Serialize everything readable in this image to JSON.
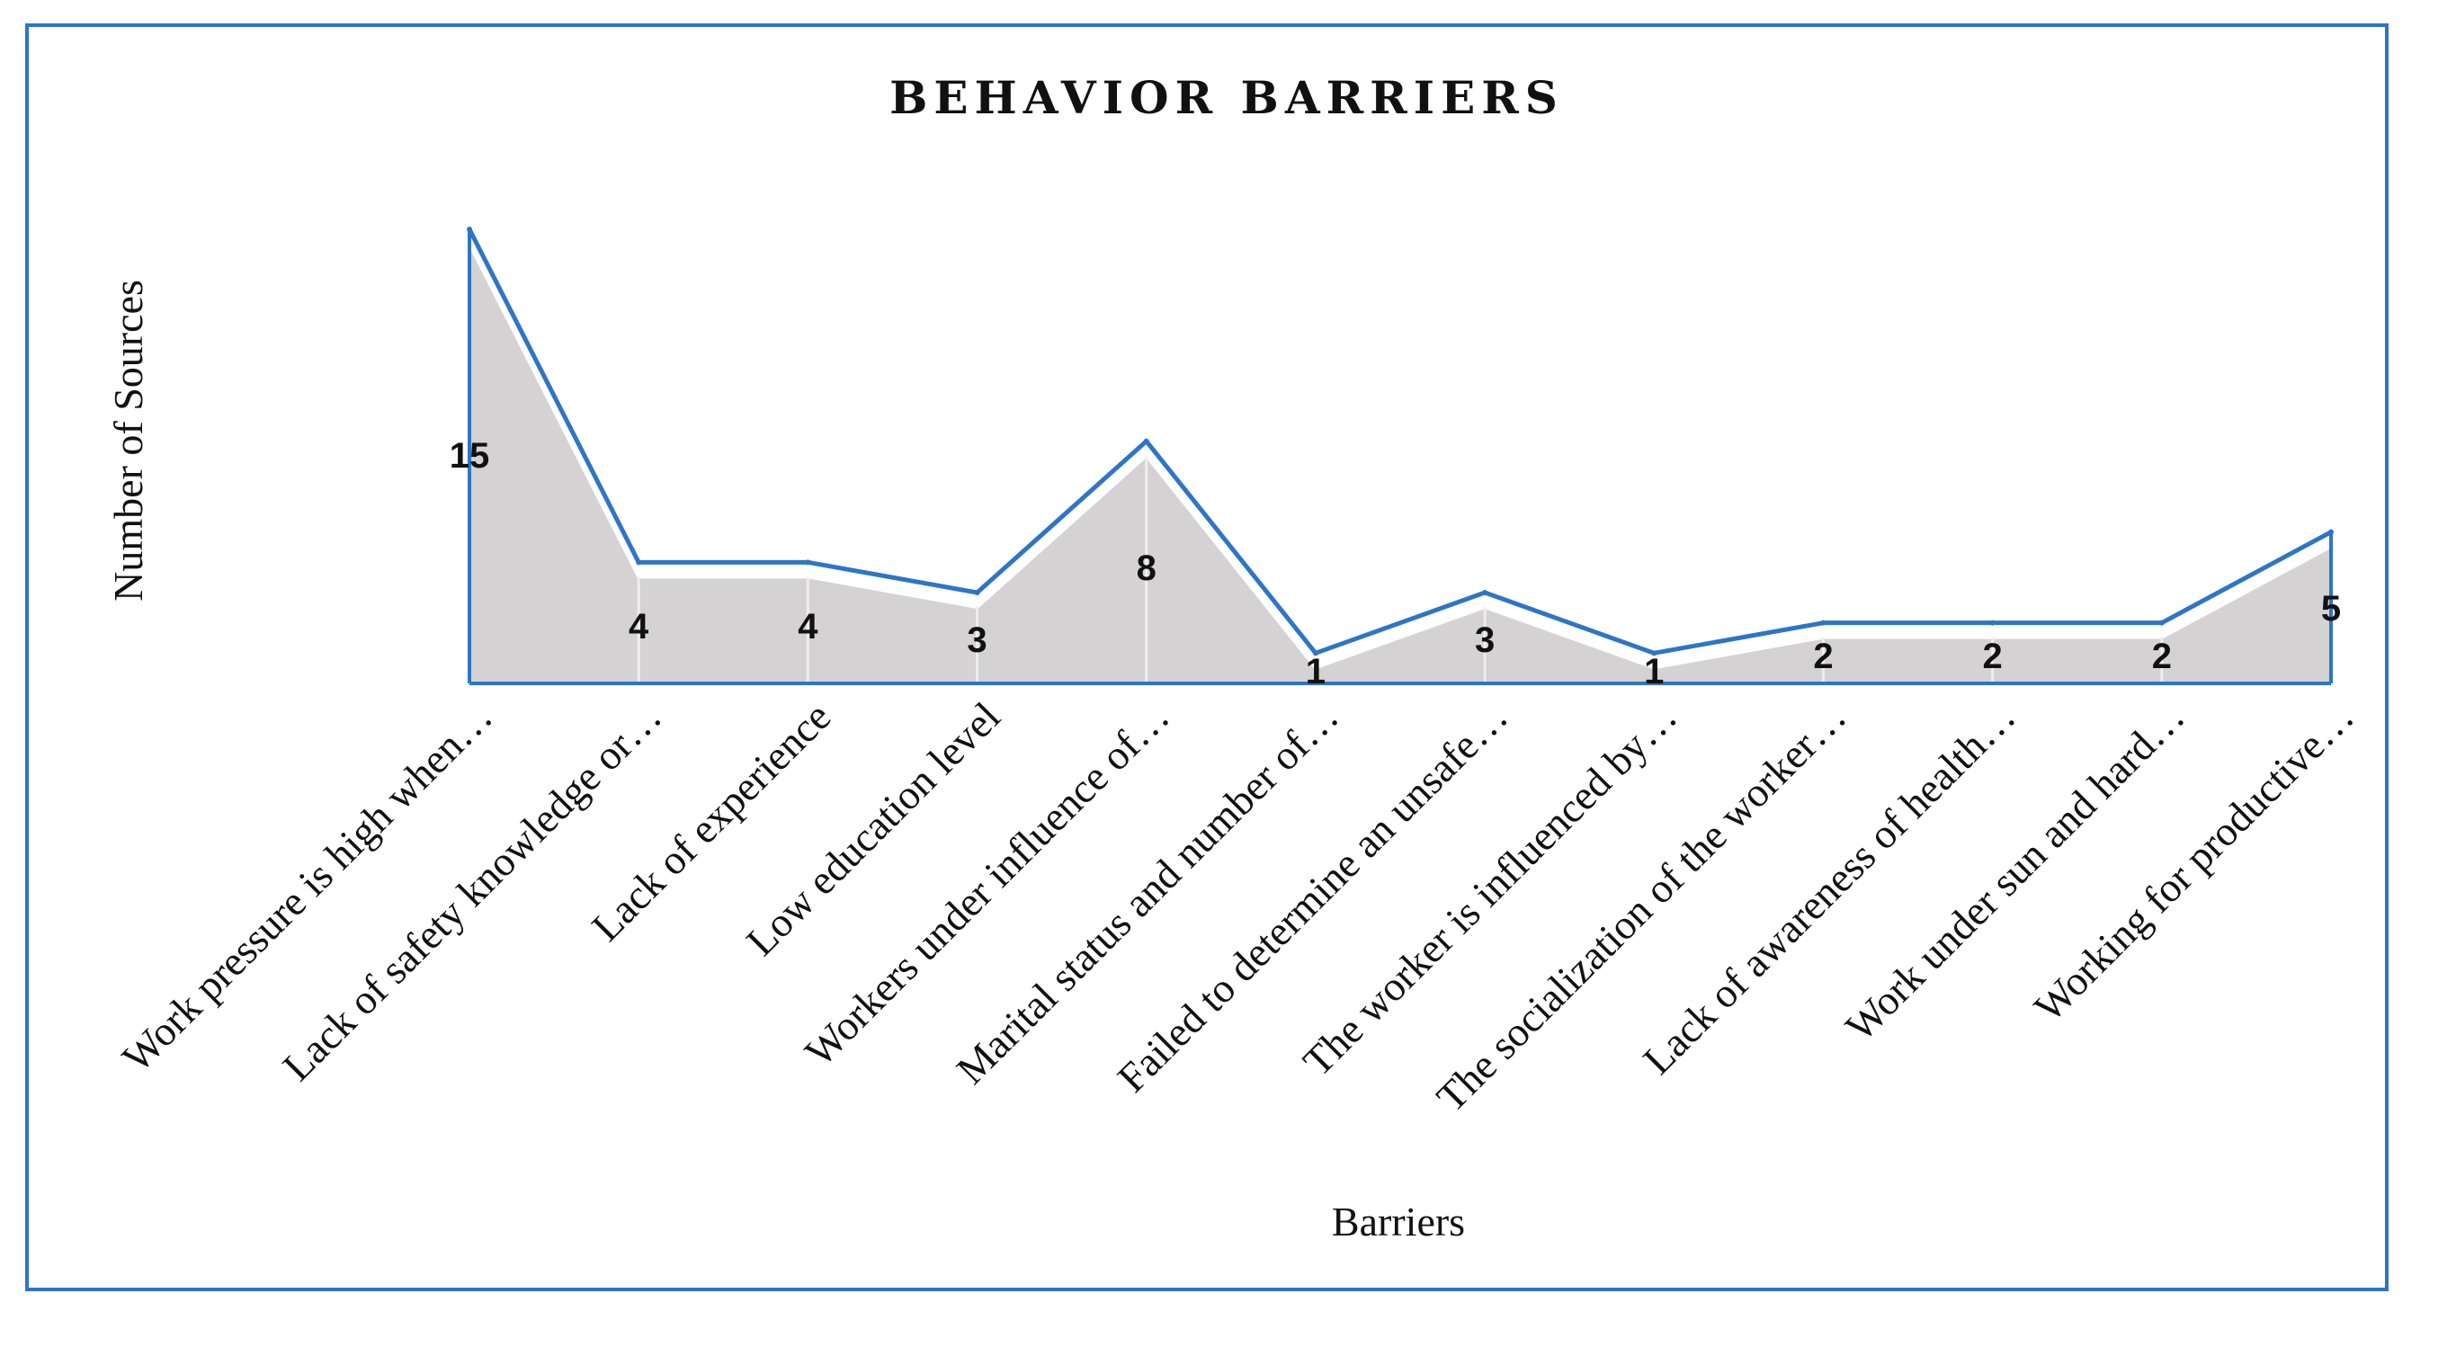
{
  "chart_data": {
    "type": "area",
    "title": "BEHAVIOR BARRIERS",
    "xlabel": "Barriers",
    "ylabel": "Number of  Sources",
    "categories": [
      "Work pressure is high when…",
      "Lack of safety knowledge or…",
      "Lack of experience",
      "Low education level",
      "Workers under influence of…",
      "Marital status and number of…",
      "Failed to determine an unsafe…",
      "The worker is influenced by…",
      "The socialization of the worker…",
      "Lack of awareness of health…",
      "Work under sun and hard…",
      "Working for productive…"
    ],
    "values": [
      15,
      4,
      4,
      3,
      8,
      1,
      3,
      1,
      2,
      2,
      2,
      5
    ],
    "data_labels": [
      "15",
      "4",
      "4",
      "3",
      "8",
      "1",
      "3",
      "1",
      "2",
      "2",
      "2",
      "5"
    ],
    "ylim": [
      0,
      15
    ],
    "grid": false,
    "legend": "none",
    "colors": {
      "line": "#2e75c8",
      "fill": "#d4d2d2",
      "frame": "#2e75c8"
    }
  }
}
